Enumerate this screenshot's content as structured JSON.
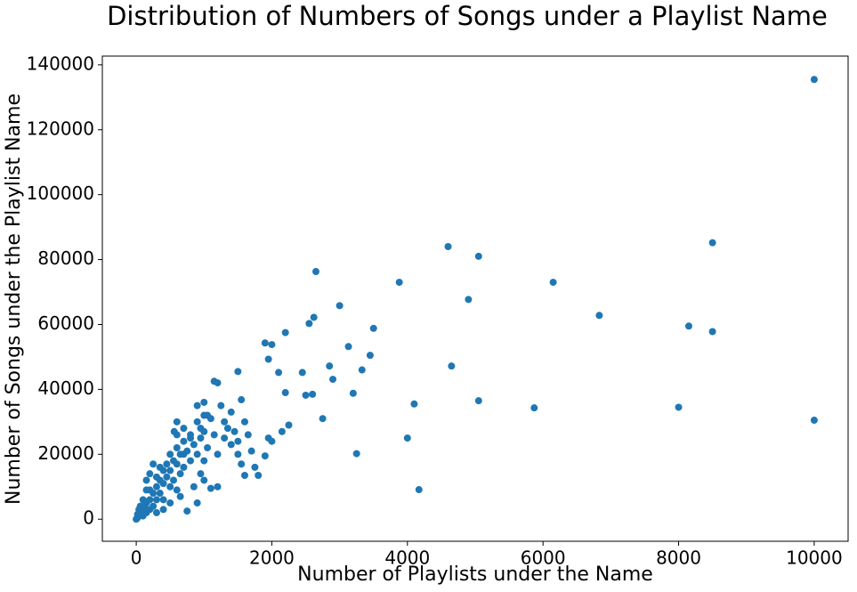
{
  "chart_data": {
    "type": "scatter",
    "title": "Distribution of Numbers of Songs under a Playlist Name",
    "x_label": "Number of Playlists under the Name",
    "y_label": "Number of Songs under the Playlist Name",
    "color": "#1f77b4",
    "xlim": [
      -500,
      10500
    ],
    "ylim": [
      -6800,
      142700
    ],
    "xticks": [
      0,
      2000,
      4000,
      6000,
      8000,
      10000
    ],
    "yticks": [
      0,
      20000,
      40000,
      60000,
      80000,
      100000,
      120000,
      140000
    ],
    "x": [
      10000,
      8500,
      4600,
      5050,
      2650,
      3880,
      6150,
      4900,
      3000,
      6830,
      2620,
      8150,
      2550,
      3500,
      8500,
      2200,
      1900,
      2000,
      3130,
      3450,
      1950,
      4650,
      2850,
      3330,
      2100,
      2450,
      1500,
      2900,
      3200,
      2200,
      2600,
      2500,
      4100,
      5050,
      5870,
      8000,
      10000,
      2750,
      4000,
      3250,
      4170,
      2150,
      2250,
      1950,
      2000,
      1900,
      1750,
      1600,
      1550,
      1800,
      1200,
      1150,
      1250,
      1400,
      1550,
      1000,
      900,
      1300,
      1100,
      950,
      800,
      700,
      750,
      900,
      1000,
      1200,
      1100,
      1500,
      1400,
      1600,
      0,
      10,
      20,
      30,
      50,
      50,
      80,
      100,
      100,
      120,
      150,
      150,
      200,
      200,
      200,
      250,
      250,
      300,
      300,
      300,
      350,
      350,
      400,
      400,
      400,
      450,
      450,
      500,
      500,
      500,
      550,
      550,
      600,
      600,
      600,
      650,
      650,
      700,
      700,
      750,
      800,
      800,
      850,
      900,
      900,
      950,
      1000,
      1000,
      1050,
      1050,
      1150,
      1200,
      1300,
      1350,
      1450,
      1500,
      1650,
      1700,
      1000,
      600,
      700,
      250,
      350,
      150,
      100,
      60,
      40,
      20,
      300,
      400,
      500,
      650,
      150,
      200,
      600,
      560,
      850,
      950
    ],
    "y": [
      135500,
      85200,
      84000,
      81000,
      76300,
      73000,
      73000,
      67700,
      65800,
      62800,
      62200,
      59500,
      60300,
      58800,
      57800,
      57500,
      54300,
      53800,
      53200,
      50500,
      49300,
      47200,
      47200,
      46000,
      45200,
      45200,
      45500,
      43100,
      38800,
      39000,
      38500,
      38200,
      35500,
      36500,
      34300,
      34500,
      30500,
      31000,
      25000,
      20200,
      9100,
      27000,
      29000,
      25000,
      24000,
      19500,
      16000,
      13500,
      17000,
      13500,
      42000,
      42500,
      35000,
      33000,
      36800,
      36000,
      35000,
      30000,
      31000,
      28000,
      25000,
      20000,
      2500,
      5000,
      12000,
      10000,
      9500,
      20000,
      23000,
      30000,
      0,
      200,
      500,
      800,
      1200,
      2500,
      1500,
      3000,
      1000,
      4000,
      5000,
      2000,
      6000,
      3000,
      9000,
      8000,
      4000,
      10000,
      6000,
      13000,
      12000,
      8000,
      15000,
      11000,
      6000,
      17000,
      13000,
      20000,
      15000,
      10000,
      18000,
      12000,
      22000,
      17000,
      9000,
      20000,
      14000,
      24000,
      16000,
      21000,
      26000,
      18000,
      23000,
      30000,
      20000,
      25000,
      27000,
      18000,
      32000,
      22000,
      26000,
      20000,
      25000,
      28000,
      27000,
      24000,
      26000,
      21000,
      32000,
      30000,
      28000,
      17000,
      16000,
      9000,
      6000,
      4000,
      3000,
      1500,
      2000,
      3000,
      5000,
      7000,
      12000,
      14000,
      26000,
      27000,
      10000,
      14000
    ]
  }
}
